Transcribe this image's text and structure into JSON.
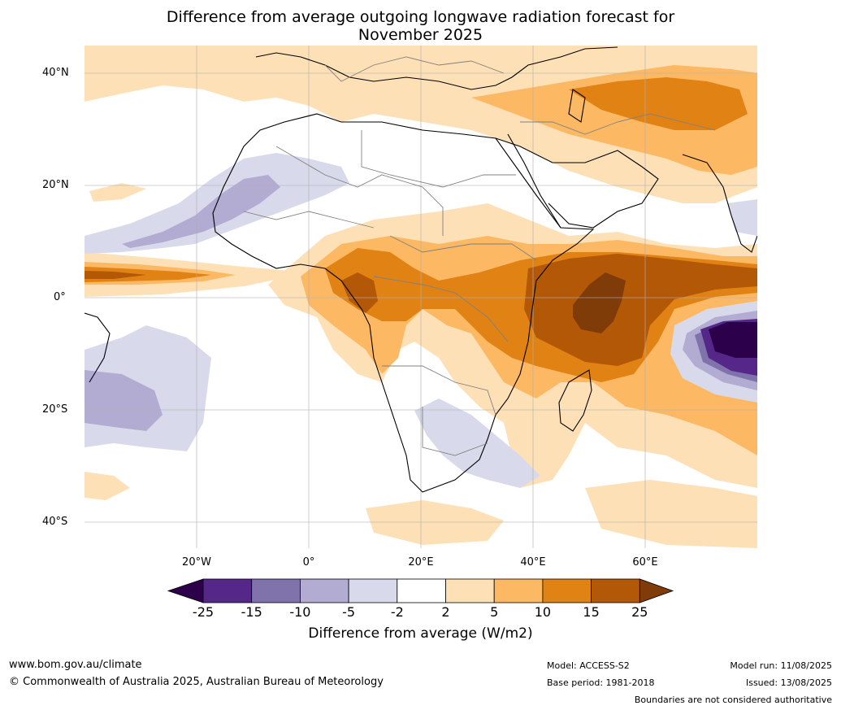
{
  "title_line1": "Difference from average outgoing longwave radiation forecast for",
  "title_line2": "November 2025",
  "lat_labels": [
    "40°N",
    "20°N",
    "0°",
    "20°S",
    "40°S"
  ],
  "lon_labels": [
    "20°W",
    "0°",
    "20°E",
    "40°E",
    "60°E"
  ],
  "colorbar": {
    "title": "Difference from average (W/m2)",
    "ticks": [
      "-25",
      "-15",
      "-10",
      "-5",
      "-2",
      "2",
      "5",
      "10",
      "15",
      "25"
    ],
    "colors": [
      "#2d004b",
      "#542788",
      "#8073ac",
      "#b2abd2",
      "#d8daeb",
      "#ffffff",
      "#fee0b6",
      "#fdb863",
      "#e08214",
      "#b35806",
      "#7f3b08"
    ]
  },
  "footer": {
    "url": "www.bom.gov.au/climate",
    "copyright": "© Commonwealth of Australia 2025, Australian Bureau of Meteorology",
    "model": "Model: ACCESS-S2",
    "base_period": "Base period: 1981-2018",
    "model_run": "Model run: 11/08/2025",
    "issued": "Issued: 13/08/2025",
    "disclaimer": "Boundaries are not considered authoritative"
  }
}
